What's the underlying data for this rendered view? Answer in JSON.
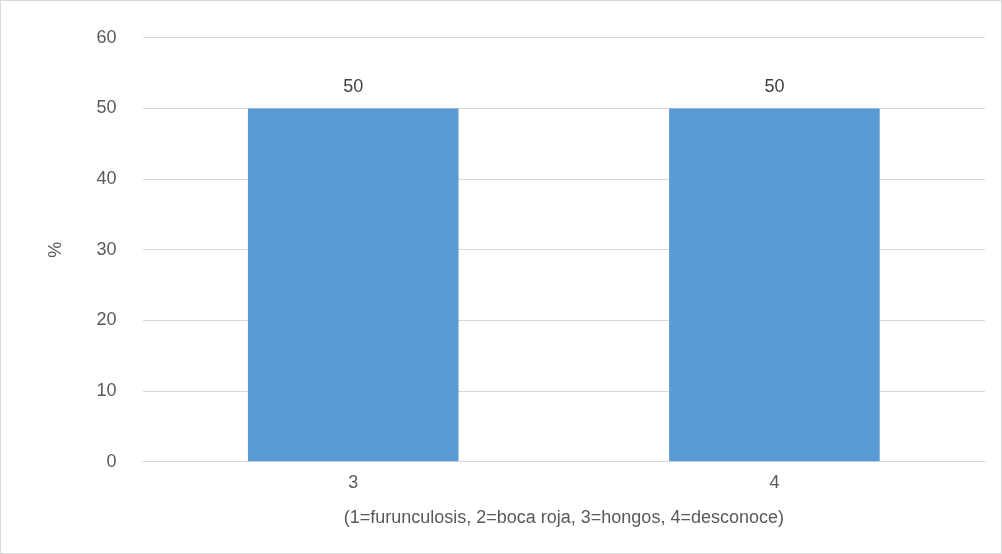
{
  "chart_data": {
    "type": "bar",
    "xlabel": "(1=furunculosis, 2=boca roja, 3=hongos, 4=desconoce)",
    "ylabel": "%",
    "categories": [
      "3",
      "4"
    ],
    "values": [
      50,
      50
    ],
    "color": "#5b9bd5",
    "ylim": [
      0,
      60
    ],
    "yticks": [
      0,
      10,
      20,
      30,
      40,
      50,
      60
    ],
    "grid": "y",
    "data_labels": true,
    "legend": false
  }
}
